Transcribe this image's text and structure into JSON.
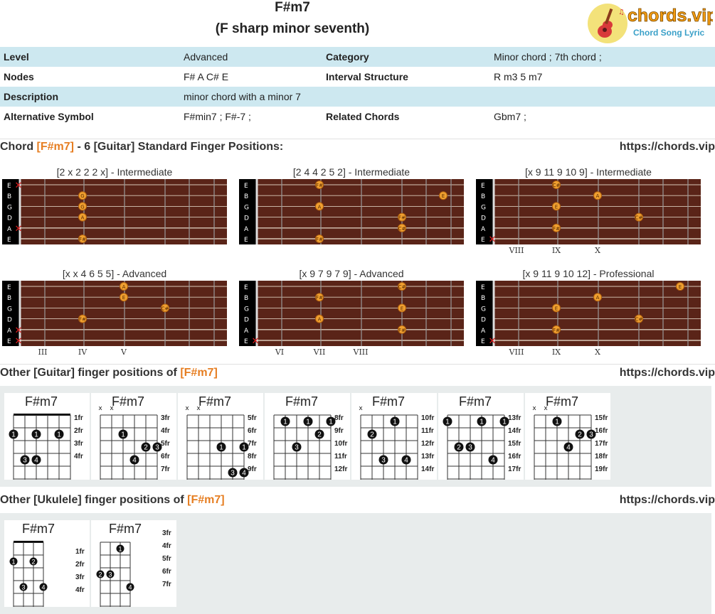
{
  "header": {
    "chord": "F#m7",
    "full_name": "(F sharp minor seventh)"
  },
  "logo": {
    "brand": "chords.vip",
    "tagline": "Chord Song Lyric"
  },
  "info": {
    "level_label": "Level",
    "level": "Advanced",
    "category_label": "Category",
    "category": "Minor chord ; 7th chord ;",
    "nodes_label": "Nodes",
    "nodes": "F# A C# E",
    "interval_label": "Interval Structure",
    "interval": "R m3 5 m7",
    "description_label": "Description",
    "description": "minor chord with a minor 7",
    "alt_label": "Alternative Symbol",
    "alt": "F#min7 ; F#-7 ;",
    "related_label": "Related Chords",
    "related": "Gbm7 ;"
  },
  "section1": {
    "prefix": "Chord ",
    "chord": "[F#m7]",
    "suffix": " - 6 [Guitar] Standard Finger Positions:",
    "url": "https://chords.vip"
  },
  "fretboards": [
    {
      "title": "[2 x 2 2 2 x] - Intermediate",
      "markers": []
    },
    {
      "title": "[2 4 4 2 5 2] - Intermediate",
      "markers": []
    },
    {
      "title": "[x 9 11 9 10 9] - Intermediate",
      "markers": [
        "VIII",
        "IX",
        "X"
      ]
    },
    {
      "title": "[x x 4 6 5 5] - Advanced",
      "markers": [
        "III",
        "IV",
        "V"
      ]
    },
    {
      "title": "[x 9 7 9 7 9] - Advanced",
      "markers": [
        "VI",
        "VII",
        "VIII"
      ]
    },
    {
      "title": "[x 9 11 9 10 12] - Professional",
      "markers": [
        "VIII",
        "IX",
        "X"
      ]
    }
  ],
  "string_names": [
    "E",
    "B",
    "G",
    "D",
    "A",
    "E"
  ],
  "section2": {
    "prefix": "Other [Guitar] finger positions of ",
    "chord": "[F#m7]",
    "url": "https://chords.vip"
  },
  "guitar_cards": [
    {
      "name": "F#m7",
      "frets": [
        "1fr",
        "2fr",
        "3fr",
        "4fr"
      ],
      "mutes": ""
    },
    {
      "name": "F#m7",
      "frets": [
        "3fr",
        "4fr",
        "5fr",
        "6fr",
        "7fr"
      ],
      "mutes": "x x"
    },
    {
      "name": "F#m7",
      "frets": [
        "5fr",
        "6fr",
        "7fr",
        "8fr",
        "9fr"
      ],
      "mutes": "x x"
    },
    {
      "name": "F#m7",
      "frets": [
        "8fr",
        "9fr",
        "10fr",
        "11fr",
        "12fr"
      ],
      "mutes": ""
    },
    {
      "name": "F#m7",
      "frets": [
        "10fr",
        "11fr",
        "12fr",
        "13fr",
        "14fr"
      ],
      "mutes": "x"
    },
    {
      "name": "F#m7",
      "frets": [
        "13fr",
        "14fr",
        "15fr",
        "16fr",
        "17fr"
      ],
      "mutes": ""
    },
    {
      "name": "F#m7",
      "frets": [
        "15fr",
        "16fr",
        "17fr",
        "18fr",
        "19fr"
      ],
      "mutes": "x x"
    }
  ],
  "section3": {
    "prefix": "Other [Ukulele] finger positions of ",
    "chord": "[F#m7]",
    "url": "https://chords.vip"
  },
  "ukulele_cards": [
    {
      "name": "F#m7",
      "frets": [
        "1fr",
        "2fr",
        "3fr",
        "4fr"
      ]
    },
    {
      "name": "F#m7",
      "frets": [
        "3fr",
        "4fr",
        "5fr",
        "6fr",
        "7fr"
      ]
    }
  ],
  "colors": {
    "accent": "#e67e22",
    "row_blue": "#cde8f0",
    "panel": "#e8ecec",
    "wood": "#5a2418"
  }
}
